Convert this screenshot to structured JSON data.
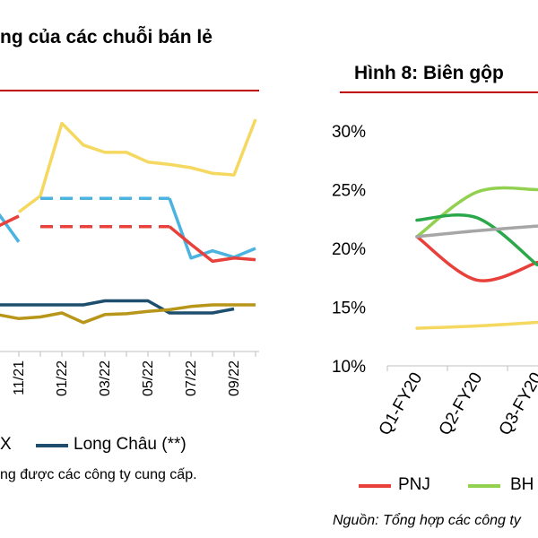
{
  "left": {
    "title": "ng của các chuỗi bán lẻ",
    "x_ticks": [
      "11/21",
      "01/22",
      "03/22",
      "05/22",
      "07/22",
      "09/22"
    ],
    "legend": [
      {
        "label": "X",
        "color": "#4ab3e0"
      },
      {
        "label": "Long Châu (**)",
        "color": "#1d4e6e"
      }
    ],
    "note": "ng được các công ty cung cấp.",
    "chart_data": {
      "type": "line",
      "x": [
        "",
        "11/21",
        "",
        "01/22",
        "",
        "03/22",
        "",
        "05/22",
        "",
        "07/22",
        "",
        "09/22",
        ""
      ],
      "series": [
        {
          "color": "#f5d85f",
          "values": [
            null,
            21.5,
            23.5,
            32.5,
            29.8,
            28.9,
            28.9,
            27.7,
            27.4,
            27.0,
            26.3,
            26.1,
            33.0
          ]
        },
        {
          "color": "#4ab3e0",
          "values": [
            21.5,
            17.8,
            23.2,
            23.2,
            23.2,
            23.2,
            23.2,
            23.2,
            23.2,
            15.8,
            16.7,
            15.9,
            17.0
          ]
        },
        {
          "color": "#e8403a",
          "values": [
            19.7,
            21.0,
            19.7,
            19.7,
            19.7,
            19.7,
            19.7,
            19.7,
            19.7,
            17.5,
            15.4,
            15.8,
            15.6
          ]
        },
        {
          "color": "#1d4e6e",
          "values": [
            10.0,
            10.0,
            10.0,
            10.0,
            10.0,
            10.5,
            10.5,
            10.5,
            9.0,
            9.0,
            9.0,
            9.5,
            null
          ]
        },
        {
          "color": "#b8961a",
          "values": [
            8.8,
            8.3,
            8.5,
            9.0,
            7.8,
            8.8,
            8.9,
            9.2,
            9.4,
            9.8,
            10.0,
            10.0,
            10.0
          ]
        }
      ]
    }
  },
  "right": {
    "title": "Hình 8: Biên gộp",
    "x_ticks": [
      "Q1-FY20",
      "Q2-FY20",
      "Q3-FY20"
    ],
    "legend": [
      {
        "label": "PNJ",
        "color": "#e8403a"
      },
      {
        "label": "BH",
        "color": "#92d050"
      }
    ],
    "note": "Nguồn: Tổng hợp các công ty",
    "chart_data": {
      "type": "line",
      "x": [
        "Q1-FY20",
        "Q2-FY20",
        "Q3-FY20"
      ],
      "ylim": [
        10,
        30
      ],
      "y_ticks": [
        "30%",
        "25%",
        "20%",
        "15%",
        "10%"
      ],
      "series": [
        {
          "name": "PNJ",
          "color": "#e8403a",
          "values": [
            21.0,
            17.3,
            18.8
          ]
        },
        {
          "name": "BH",
          "color": "#92d050",
          "values": [
            21.0,
            24.8,
            25.0
          ]
        },
        {
          "color": "#2aa84a",
          "values": [
            22.4,
            22.6,
            18.6
          ]
        },
        {
          "color": "#a6a6a6",
          "values": [
            21.0,
            21.5,
            21.9
          ]
        },
        {
          "color": "#f5d85f",
          "values": [
            13.2,
            13.4,
            13.7
          ]
        }
      ]
    }
  }
}
